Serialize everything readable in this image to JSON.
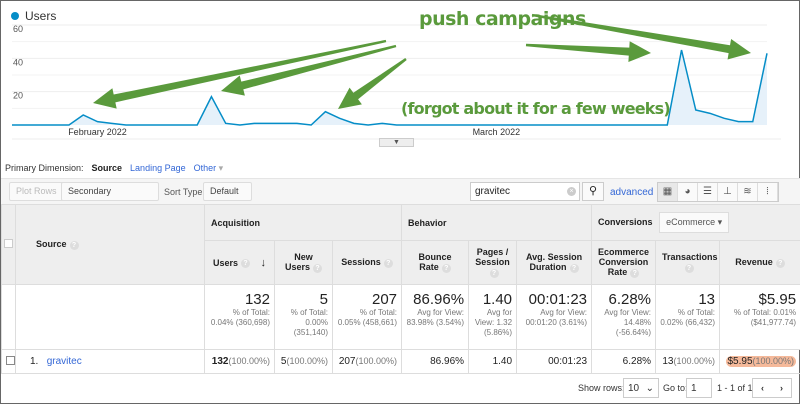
{
  "chart_data": {
    "type": "area",
    "series": [
      {
        "name": "Users",
        "color": "#058dc7",
        "values": [
          0,
          0,
          0,
          0,
          0,
          6,
          2,
          1,
          0,
          0,
          0,
          0,
          0,
          0,
          17,
          1,
          0,
          1,
          1,
          1,
          1,
          0,
          8,
          4,
          1,
          0,
          1,
          0,
          0,
          0,
          0,
          0,
          0,
          0,
          0,
          0,
          0,
          0,
          0,
          0,
          0,
          0,
          0,
          0,
          0,
          0,
          0,
          45,
          9,
          7,
          4,
          2,
          2,
          43
        ]
      }
    ],
    "yticks": [
      "60",
      "40",
      "20"
    ],
    "ylim": [
      0,
      60
    ],
    "xticks": [
      {
        "label": "February 2022"
      },
      {
        "label": "March 2022"
      }
    ],
    "grid": true,
    "legend": "top-left"
  },
  "annotations": {
    "title": "push campaigns",
    "note": "(forgot about it for a few weeks)",
    "color": "#5a9a3c"
  },
  "primary_dimension": {
    "label": "Primary Dimension:",
    "active": "Source",
    "options": [
      "Landing Page",
      "Other"
    ]
  },
  "toolbar": {
    "plot_rows": "Plot Rows",
    "secondary": "Secondary dimension",
    "sort_label": "Sort Type:",
    "sort_value": "Default",
    "search_value": "gravitec",
    "advanced": "advanced"
  },
  "table": {
    "source_header": "Source",
    "acquisition": "Acquisition",
    "behavior": "Behavior",
    "conversions": "Conversions",
    "conv_select": "eCommerce",
    "columns": [
      "Users",
      "New Users",
      "Sessions",
      "Bounce Rate",
      "Pages / Session",
      "Avg. Session Duration",
      "Ecommerce Conversion Rate",
      "Transactions",
      "Revenue"
    ],
    "totals": [
      {
        "v": "132",
        "s": "% of Total: 0.04% (360,698)"
      },
      {
        "v": "5",
        "s": "% of Total: 0.00% (351,140)"
      },
      {
        "v": "207",
        "s": "% of Total: 0.05% (458,661)"
      },
      {
        "v": "86.96%",
        "s": "Avg for View: 83.98% (3.54%)"
      },
      {
        "v": "1.40",
        "s": "Avg for View: 1.32 (5.86%)"
      },
      {
        "v": "00:01:23",
        "s": "Avg for View: 00:01:20 (3.61%)"
      },
      {
        "v": "6.28%",
        "s": "Avg for View: 14.48% (-56.64%)"
      },
      {
        "v": "13",
        "s": "% of Total: 0.02% (66,432)"
      },
      {
        "v": "$5.95",
        "s": "% of Total: 0.01% ($41,977.74)"
      }
    ],
    "rows": [
      {
        "index": "1.",
        "source": "gravitec",
        "cells": [
          {
            "v": "132",
            "p": "(100.00%)"
          },
          {
            "v": "5",
            "p": "(100.00%)"
          },
          {
            "v": "207",
            "p": "(100.00%)"
          },
          {
            "v": "86.96%",
            "p": ""
          },
          {
            "v": "1.40",
            "p": ""
          },
          {
            "v": "00:01:23",
            "p": ""
          },
          {
            "v": "6.28%",
            "p": ""
          },
          {
            "v": "13",
            "p": "(100.00%)"
          },
          {
            "v": "$5.95",
            "p": "(100.00%)"
          }
        ]
      }
    ]
  },
  "footer": {
    "show_rows": "Show rows:",
    "rows_value": "10",
    "goto": "Go to:",
    "goto_value": "1",
    "range": "1 - 1 of 1"
  }
}
